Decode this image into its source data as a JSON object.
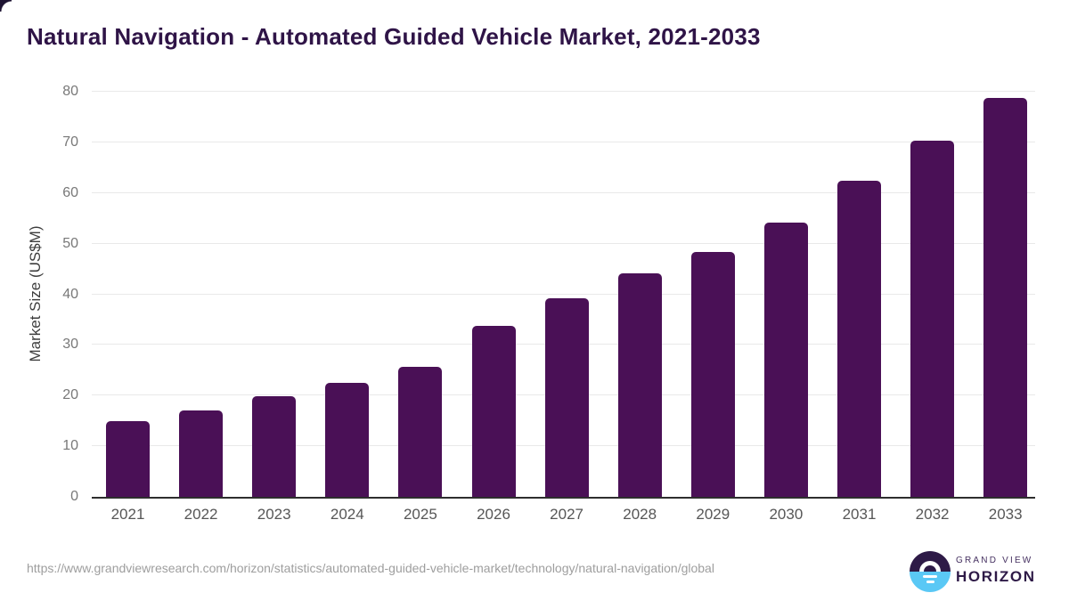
{
  "page": {
    "title": "Natural Navigation - Automated Guided Vehicle Market, 2021-2033",
    "source_url": "https://www.grandviewresearch.com/horizon/statistics/automated-guided-vehicle-market/technology/natural-navigation/global"
  },
  "chart_data": {
    "type": "bar",
    "title": "Natural Navigation - Automated Guided Vehicle Market, 2021-2033",
    "categories": [
      "2021",
      "2022",
      "2023",
      "2024",
      "2025",
      "2026",
      "2027",
      "2028",
      "2029",
      "2030",
      "2031",
      "2032",
      "2033"
    ],
    "values": [
      15.0,
      17.1,
      19.8,
      22.5,
      25.6,
      33.7,
      39.2,
      44.2,
      48.3,
      54.2,
      62.4,
      70.3,
      78.7
    ],
    "xlabel": "",
    "ylabel": "Market Size (US$M)",
    "ylim": [
      0,
      80
    ],
    "ytick_step": 10,
    "grid": true,
    "legend": "none",
    "bar_color": "#4a1056"
  },
  "branding": {
    "logo_line1": "GRAND VIEW",
    "logo_line2": "HORIZON",
    "icon": "horizon-sunrise-icon",
    "logo_purple": "#2e1a47",
    "logo_blue": "#5ac8f5"
  },
  "colors": {
    "title_text": "#2f1447",
    "bar": "#4a1056",
    "gridline": "#e9e9e9",
    "axis_line": "#2e2e2e",
    "tick_text": "#787878",
    "x_tick_text": "#565656",
    "url_text": "#9e9e9e",
    "background": "#ffffff"
  }
}
